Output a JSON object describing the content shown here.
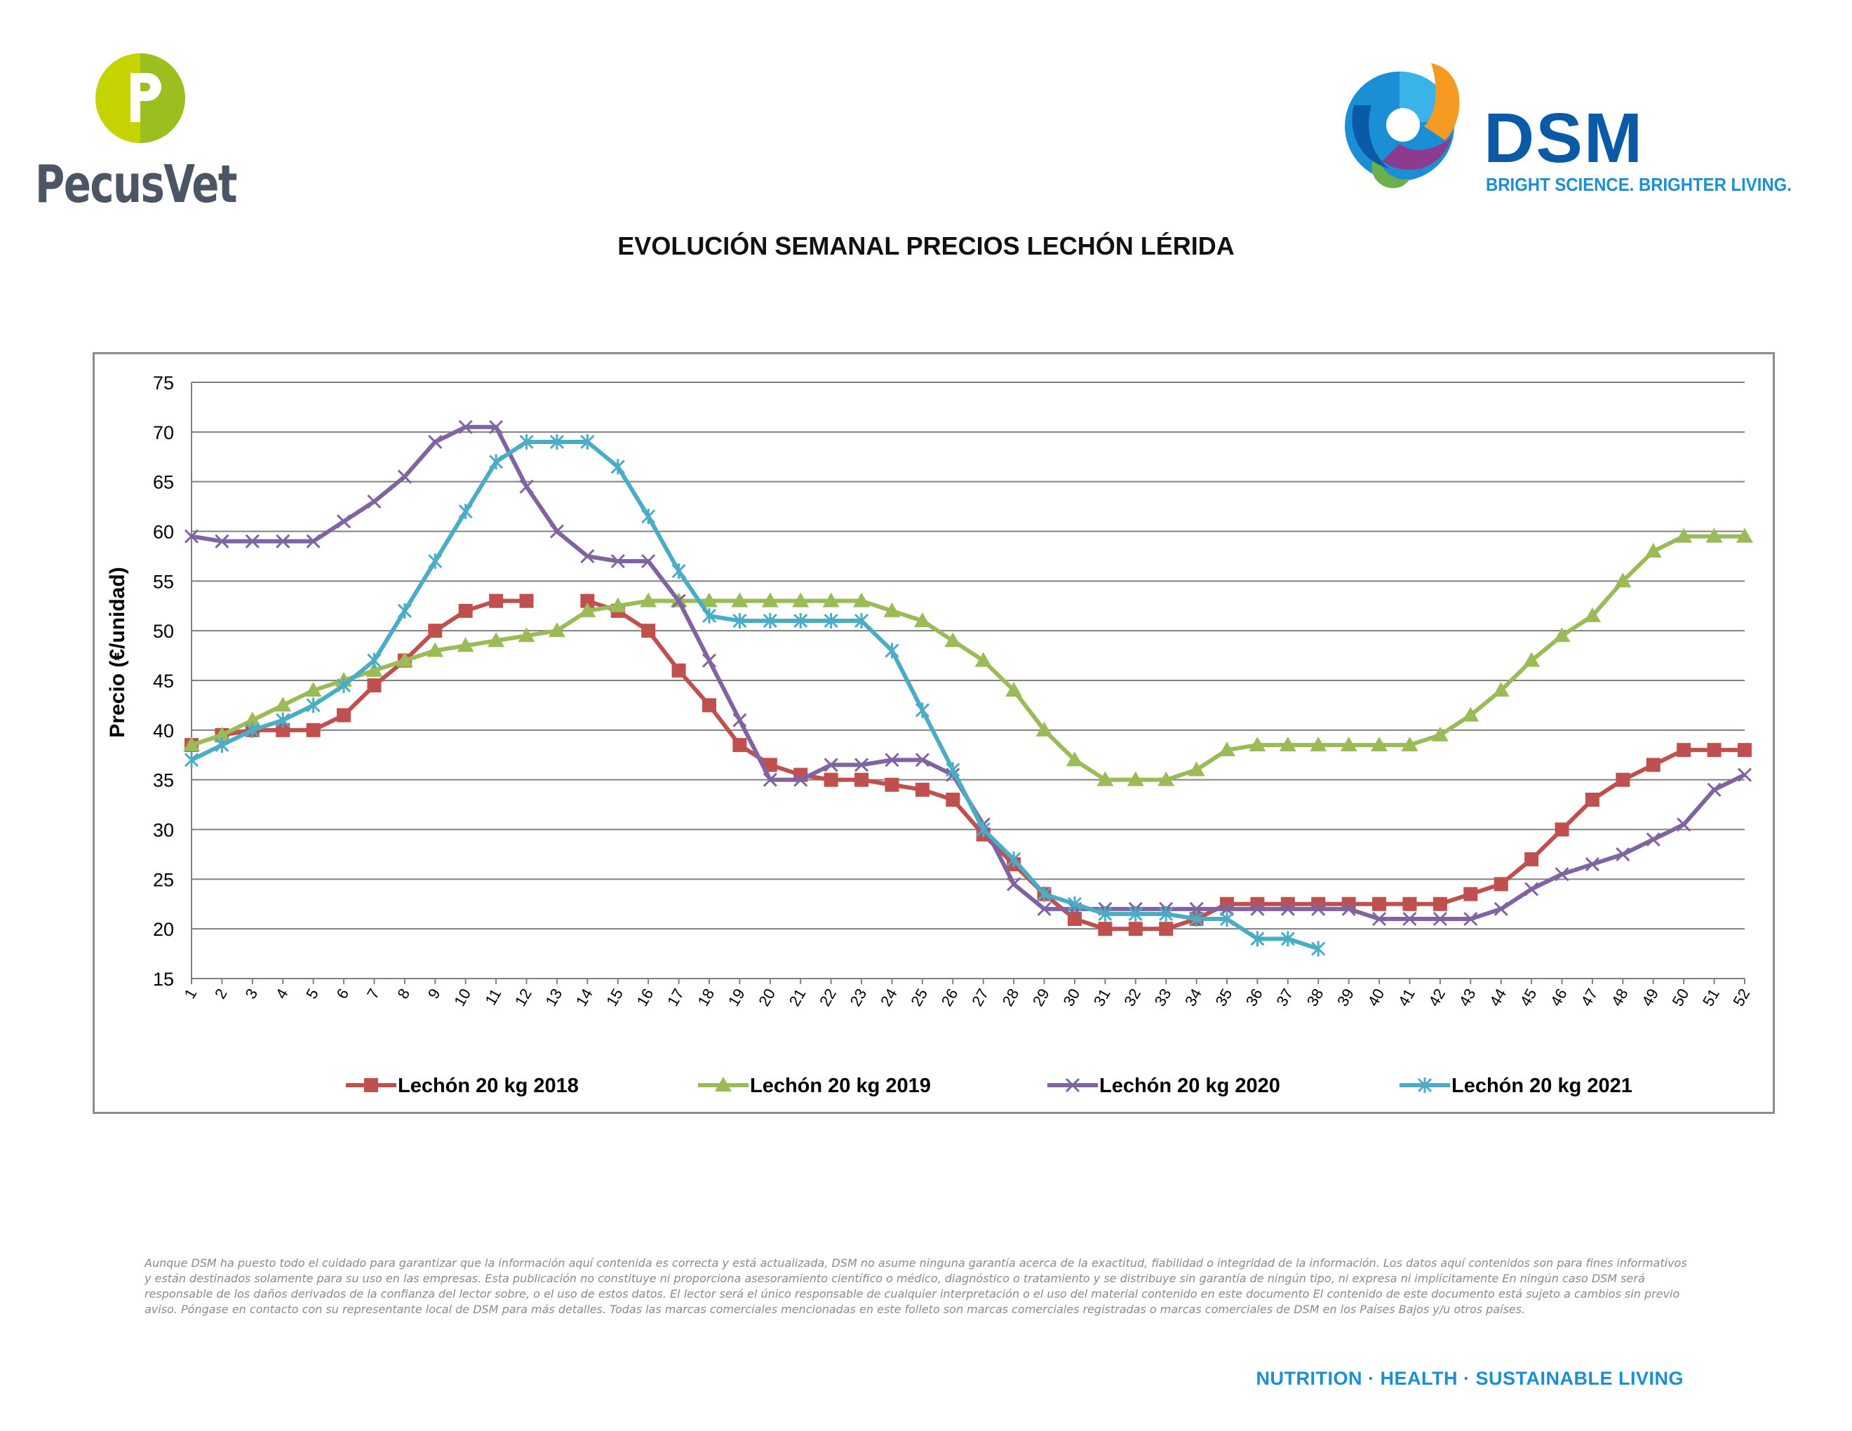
{
  "brand_left": {
    "name": "PecusVet",
    "logo_letter": "P"
  },
  "brand_right": {
    "name": "DSM",
    "tagline": "BRIGHT SCIENCE. BRIGHTER LIVING."
  },
  "chart_data": {
    "type": "line",
    "title": "EVOLUCIÓN SEMANAL PRECIOS LECHÓN LÉRIDA",
    "xlabel": "",
    "ylabel": "Precio (€/unidad)",
    "ylim": [
      15,
      75
    ],
    "yticks": [
      15,
      20,
      25,
      30,
      35,
      40,
      45,
      50,
      55,
      60,
      65,
      70,
      75
    ],
    "grid": true,
    "legend_position": "bottom",
    "x": [
      1,
      2,
      3,
      4,
      5,
      6,
      7,
      8,
      9,
      10,
      11,
      12,
      13,
      14,
      15,
      16,
      17,
      18,
      19,
      20,
      21,
      22,
      23,
      24,
      25,
      26,
      27,
      28,
      29,
      30,
      31,
      32,
      33,
      34,
      35,
      36,
      37,
      38,
      39,
      40,
      41,
      42,
      43,
      44,
      45,
      46,
      47,
      48,
      49,
      50,
      51,
      52
    ],
    "series": [
      {
        "name": "Lechón 20 kg 2018",
        "color": "#c0504d",
        "marker": "square",
        "values": [
          38.5,
          39.5,
          40,
          40,
          40,
          41.5,
          44.5,
          47,
          50,
          52,
          53,
          53,
          null,
          53,
          52,
          50,
          46,
          42.5,
          38.5,
          36.5,
          35.5,
          35,
          35,
          34.5,
          34,
          33,
          29.5,
          26.5,
          23.5,
          21,
          20,
          20,
          20,
          21,
          22.5,
          22.5,
          22.5,
          22.5,
          22.5,
          22.5,
          22.5,
          22.5,
          23.5,
          24.5,
          27,
          30,
          33,
          35,
          36.5,
          38,
          38,
          38
        ]
      },
      {
        "name": "Lechón 20 kg 2019",
        "color": "#9bbb59",
        "marker": "triangle",
        "values": [
          38.5,
          39.5,
          41,
          42.5,
          44,
          45,
          46,
          47,
          48,
          48.5,
          49,
          49.5,
          50,
          52,
          52.5,
          53,
          53,
          53,
          53,
          53,
          53,
          53,
          53,
          52,
          51,
          49,
          47,
          44,
          40,
          37,
          35,
          35,
          35,
          36,
          38,
          38.5,
          38.5,
          38.5,
          38.5,
          38.5,
          38.5,
          39.5,
          41.5,
          44,
          47,
          49.5,
          51.5,
          55,
          58,
          59.5,
          59.5,
          59.5
        ]
      },
      {
        "name": "Lechón 20 kg 2020",
        "color": "#8064a2",
        "marker": "x",
        "values": [
          59.5,
          59,
          59,
          59,
          59,
          61,
          63,
          65.5,
          69,
          70.5,
          70.5,
          64.5,
          60,
          57.5,
          57,
          57,
          53,
          47,
          41,
          35,
          35,
          36.5,
          36.5,
          37,
          37,
          35.5,
          30.5,
          24.5,
          22,
          22,
          22,
          22,
          22,
          22,
          22,
          22,
          22,
          22,
          22,
          21,
          21,
          21,
          21,
          22,
          24,
          25.5,
          26.5,
          27.5,
          29,
          30.5,
          34,
          35.5
        ]
      },
      {
        "name": "Lechón 20 kg 2021",
        "color": "#4bacc6",
        "marker": "star",
        "values": [
          37,
          38.5,
          40,
          41,
          42.5,
          44.5,
          47,
          52,
          57,
          62,
          67,
          69,
          69,
          69,
          66.5,
          61.5,
          56,
          51.5,
          51,
          51,
          51,
          51,
          51,
          48,
          42,
          36,
          30,
          27,
          23.5,
          22.5,
          21.5,
          21.5,
          21.5,
          21,
          21,
          19,
          19,
          18,
          null,
          null,
          null,
          null,
          null,
          null,
          null,
          null,
          null,
          null,
          null,
          null,
          null,
          null
        ]
      }
    ]
  },
  "disclaimer": "Aunque DSM ha puesto todo el cuidado para garantizar que la información aquí contenida es correcta y está actualizada, DSM no asume ninguna garantía acerca de la exactitud, fiabilidad o integridad de la información. Los datos aquí contenidos son para fines informativos y están destinados solamente para su uso en las empresas. Esta publicación no constituye ni proporciona asesoramiento científico o médico, diagnóstico o tratamiento y se distribuye sin garantía de ningún tipo, ni expresa ni implícitamente En ningún caso DSM será responsable de los daños derivados de la confianza del lector sobre, o el uso de estos datos. El lector será el único responsable de cualquier interpretación o el uso del material contenido en este documento El contenido de este documento está sujeto a cambios sin previo aviso. Póngase en contacto con su representante local de DSM para más detalles. Todas las marcas comerciales mencionadas en este folleto son marcas comerciales registradas o marcas comerciales de DSM en los Países Bajos y/u otros países.",
  "footer_tagline": "NUTRITION · HEALTH · SUSTAINABLE LIVING"
}
